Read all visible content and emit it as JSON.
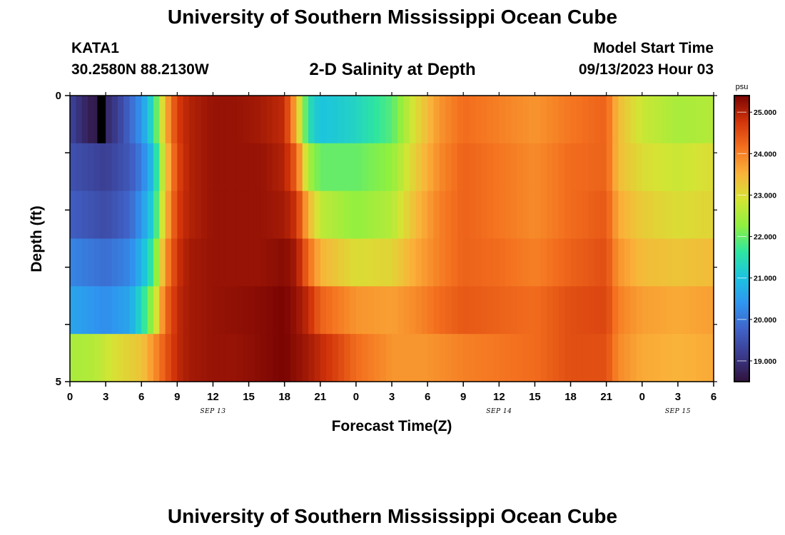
{
  "page": {
    "title": "University of Southern Mississippi Ocean Cube",
    "footer_title": "University of Southern Mississippi Ocean Cube",
    "station_id": "KATA1",
    "station_coords": "30.2580N  88.2130W",
    "plot_title": "2-D Salinity at Depth",
    "model_start_label": "Model Start Time",
    "model_start_value": "09/13/2023 Hour 03"
  },
  "chart_data": {
    "type": "heatmap",
    "title": "2-D Salinity at Depth",
    "xlabel": "Forecast Time(Z)",
    "ylabel": "Depth (ft)",
    "y_ticks": [
      "0",
      "5"
    ],
    "ylim": [
      0,
      5
    ],
    "x_ticks": [
      "0",
      "3",
      "6",
      "9",
      "12",
      "15",
      "18",
      "21",
      "0",
      "3",
      "6",
      "9",
      "12",
      "15",
      "18",
      "21",
      "0",
      "3",
      "6"
    ],
    "date_labels": [
      {
        "label": "SEP 13",
        "hour_offset": 12
      },
      {
        "label": "SEP 14",
        "hour_offset": 36
      },
      {
        "label": "SEP 15",
        "hour_offset": 51
      }
    ],
    "xlim_hours": [
      0,
      54
    ],
    "colorbar": {
      "unit": "psu",
      "range": [
        18.5,
        25.4
      ],
      "tick_values": [
        25.0,
        24.0,
        23.0,
        22.0,
        21.0,
        20.0,
        19.0
      ],
      "tick_labels": [
        "25.000",
        "24.000",
        "23.000",
        "22.000",
        "21.000",
        "20.000",
        "19.000"
      ]
    },
    "layers": [
      {
        "name": "layer-1-surface",
        "profile": [
          [
            0,
            19.3
          ],
          [
            1,
            18.9
          ],
          [
            2,
            18.6
          ],
          [
            3,
            18.8
          ],
          [
            4,
            19.2
          ],
          [
            5,
            19.8
          ],
          [
            6,
            20.4
          ],
          [
            7,
            21.5
          ],
          [
            8,
            23.5
          ],
          [
            9,
            24.7
          ],
          [
            10,
            25.0
          ],
          [
            12,
            25.2
          ],
          [
            14,
            25.2
          ],
          [
            16,
            25.1
          ],
          [
            18,
            24.9
          ],
          [
            19,
            23.5
          ],
          [
            20,
            21.5
          ],
          [
            21,
            21.0
          ],
          [
            24,
            21.3
          ],
          [
            27,
            21.9
          ],
          [
            29,
            23.0
          ],
          [
            31,
            23.8
          ],
          [
            33,
            24.2
          ],
          [
            36,
            24.0
          ],
          [
            39,
            23.8
          ],
          [
            42,
            24.1
          ],
          [
            45,
            24.3
          ],
          [
            46,
            23.4
          ],
          [
            48,
            22.8
          ],
          [
            51,
            22.5
          ],
          [
            54,
            22.6
          ]
        ]
      },
      {
        "name": "layer-2",
        "profile": [
          [
            0,
            19.5
          ],
          [
            3,
            19.2
          ],
          [
            5,
            19.6
          ],
          [
            6,
            20.1
          ],
          [
            7,
            21.0
          ],
          [
            8,
            23.2
          ],
          [
            9,
            24.6
          ],
          [
            10,
            25.0
          ],
          [
            12,
            25.2
          ],
          [
            16,
            25.2
          ],
          [
            18,
            25.0
          ],
          [
            19,
            24.3
          ],
          [
            20,
            22.5
          ],
          [
            21,
            22.0
          ],
          [
            24,
            22.0
          ],
          [
            27,
            22.3
          ],
          [
            29,
            23.2
          ],
          [
            31,
            23.9
          ],
          [
            33,
            24.3
          ],
          [
            36,
            24.1
          ],
          [
            39,
            23.9
          ],
          [
            42,
            24.2
          ],
          [
            45,
            24.3
          ],
          [
            46,
            23.4
          ],
          [
            48,
            23.0
          ],
          [
            51,
            22.8
          ],
          [
            54,
            23.0
          ]
        ]
      },
      {
        "name": "layer-3",
        "profile": [
          [
            0,
            19.7
          ],
          [
            3,
            19.4
          ],
          [
            5,
            19.8
          ],
          [
            6,
            20.4
          ],
          [
            7,
            21.3
          ],
          [
            8,
            23.4
          ],
          [
            9,
            24.7
          ],
          [
            10,
            25.0
          ],
          [
            12,
            25.2
          ],
          [
            16,
            25.2
          ],
          [
            18,
            25.1
          ],
          [
            19,
            24.8
          ],
          [
            20,
            23.5
          ],
          [
            21,
            22.7
          ],
          [
            24,
            22.3
          ],
          [
            27,
            22.6
          ],
          [
            29,
            23.4
          ],
          [
            31,
            24.0
          ],
          [
            33,
            24.3
          ],
          [
            36,
            24.1
          ],
          [
            39,
            23.9
          ],
          [
            42,
            24.2
          ],
          [
            45,
            24.4
          ],
          [
            46,
            23.6
          ],
          [
            48,
            23.2
          ],
          [
            51,
            23.0
          ],
          [
            54,
            23.1
          ]
        ]
      },
      {
        "name": "layer-4",
        "profile": [
          [
            0,
            20.2
          ],
          [
            3,
            19.9
          ],
          [
            5,
            20.2
          ],
          [
            6,
            20.8
          ],
          [
            7,
            21.8
          ],
          [
            8,
            23.8
          ],
          [
            9,
            24.8
          ],
          [
            10,
            25.1
          ],
          [
            12,
            25.2
          ],
          [
            16,
            25.2
          ],
          [
            18,
            25.3
          ],
          [
            19,
            25.1
          ],
          [
            20,
            24.2
          ],
          [
            21,
            23.5
          ],
          [
            24,
            23.0
          ],
          [
            27,
            23.1
          ],
          [
            29,
            23.6
          ],
          [
            31,
            24.0
          ],
          [
            33,
            24.3
          ],
          [
            36,
            24.2
          ],
          [
            39,
            24.0
          ],
          [
            42,
            24.3
          ],
          [
            45,
            24.5
          ],
          [
            46,
            23.8
          ],
          [
            48,
            23.4
          ],
          [
            51,
            23.3
          ],
          [
            54,
            23.4
          ]
        ]
      },
      {
        "name": "layer-5",
        "profile": [
          [
            0,
            20.6
          ],
          [
            3,
            20.3
          ],
          [
            5,
            20.6
          ],
          [
            6,
            21.4
          ],
          [
            7,
            22.5
          ],
          [
            8,
            24.2
          ],
          [
            9,
            24.9
          ],
          [
            10,
            25.1
          ],
          [
            12,
            25.2
          ],
          [
            16,
            25.3
          ],
          [
            18,
            25.4
          ],
          [
            19,
            25.2
          ],
          [
            20,
            24.9
          ],
          [
            21,
            24.3
          ],
          [
            24,
            23.8
          ],
          [
            27,
            23.7
          ],
          [
            29,
            23.9
          ],
          [
            31,
            24.2
          ],
          [
            33,
            24.4
          ],
          [
            36,
            24.3
          ],
          [
            39,
            24.2
          ],
          [
            42,
            24.5
          ],
          [
            45,
            24.6
          ],
          [
            46,
            24.0
          ],
          [
            48,
            23.7
          ],
          [
            51,
            23.6
          ],
          [
            54,
            23.7
          ]
        ]
      },
      {
        "name": "layer-6-bottom",
        "profile": [
          [
            0,
            22.5
          ],
          [
            2,
            22.6
          ],
          [
            4,
            23.0
          ],
          [
            6,
            23.3
          ],
          [
            7,
            23.8
          ],
          [
            8,
            24.4
          ],
          [
            9,
            24.9
          ],
          [
            10,
            25.1
          ],
          [
            12,
            25.2
          ],
          [
            14,
            25.2
          ],
          [
            16,
            25.3
          ],
          [
            18,
            25.4
          ],
          [
            20,
            25.1
          ],
          [
            22,
            24.7
          ],
          [
            24,
            24.2
          ],
          [
            27,
            23.8
          ],
          [
            30,
            23.8
          ],
          [
            33,
            24.0
          ],
          [
            36,
            24.1
          ],
          [
            39,
            24.2
          ],
          [
            42,
            24.5
          ],
          [
            45,
            24.5
          ],
          [
            46,
            23.9
          ],
          [
            48,
            23.6
          ],
          [
            51,
            23.5
          ],
          [
            54,
            23.6
          ]
        ]
      }
    ],
    "colors": {
      "stops": [
        "#30123b",
        "#3a3a8c",
        "#4062c8",
        "#2f95f0",
        "#1cc3e0",
        "#2ee6a0",
        "#8ef040",
        "#d4e534",
        "#fab23a",
        "#f4711f",
        "#d2340a",
        "#7a0403"
      ],
      "missing_cell": "#000000"
    }
  }
}
